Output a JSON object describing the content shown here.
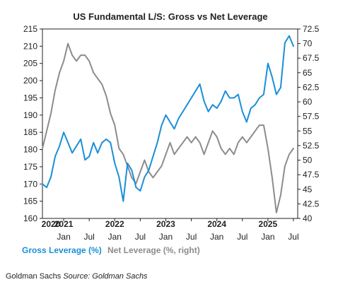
{
  "chart_data": {
    "type": "line",
    "title": "US Fundamental L/S: Gross vs Net Leverage",
    "left_axis": {
      "ylim": [
        160,
        215
      ],
      "ticks": [
        160,
        165,
        170,
        175,
        180,
        185,
        190,
        195,
        200,
        205,
        210,
        215
      ]
    },
    "right_axis": {
      "ylim": [
        40,
        72.5
      ],
      "ticks": [
        "40",
        "42.5",
        "45",
        "47.5",
        "50",
        "52.5",
        "55",
        "57.5",
        "60",
        "62.5",
        "65",
        "67.5",
        "70",
        "72.5"
      ]
    },
    "x_range": [
      "2020-08",
      "2025-08"
    ],
    "year_labels": [
      {
        "label": "2020",
        "date": "2020-10"
      },
      {
        "label": "2021",
        "date": "2021-01"
      },
      {
        "label": "2022",
        "date": "2022-01"
      },
      {
        "label": "2023",
        "date": "2023-01"
      },
      {
        "label": "2024",
        "date": "2024-01"
      },
      {
        "label": "2025",
        "date": "2025-01"
      }
    ],
    "month_labels": [
      {
        "label": "Jan",
        "date": "2021-01"
      },
      {
        "label": "Jul",
        "date": "2021-07"
      },
      {
        "label": "Jan",
        "date": "2022-01"
      },
      {
        "label": "Jul",
        "date": "2022-07"
      },
      {
        "label": "Jan",
        "date": "2023-01"
      },
      {
        "label": "Jul",
        "date": "2023-07"
      },
      {
        "label": "Jan",
        "date": "2024-01"
      },
      {
        "label": "Jul",
        "date": "2024-07"
      },
      {
        "label": "Jan",
        "date": "2025-01"
      },
      {
        "label": "Jul",
        "date": "2025-07"
      }
    ],
    "grid": false,
    "legend_position": "bottom-left",
    "series": [
      {
        "name": "Gross Leverage (%)",
        "axis": "left",
        "color": "#1a8fd8",
        "points": [
          [
            "2020-08",
            170
          ],
          [
            "2020-09",
            169
          ],
          [
            "2020-10",
            172
          ],
          [
            "2020-11",
            178
          ],
          [
            "2020-12",
            181
          ],
          [
            "2021-01",
            185
          ],
          [
            "2021-02",
            182
          ],
          [
            "2021-03",
            179
          ],
          [
            "2021-04",
            181
          ],
          [
            "2021-05",
            183
          ],
          [
            "2021-06",
            177
          ],
          [
            "2021-07",
            178
          ],
          [
            "2021-08",
            182
          ],
          [
            "2021-09",
            179
          ],
          [
            "2021-10",
            182
          ],
          [
            "2021-11",
            183
          ],
          [
            "2021-12",
            182
          ],
          [
            "2022-01",
            176
          ],
          [
            "2022-02",
            172
          ],
          [
            "2022-03",
            165
          ],
          [
            "2022-04",
            176
          ],
          [
            "2022-05",
            174
          ],
          [
            "2022-06",
            169
          ],
          [
            "2022-07",
            168
          ],
          [
            "2022-08",
            172
          ],
          [
            "2022-09",
            174
          ],
          [
            "2022-10",
            178
          ],
          [
            "2022-11",
            182
          ],
          [
            "2022-12",
            187
          ],
          [
            "2023-01",
            190
          ],
          [
            "2023-02",
            188
          ],
          [
            "2023-03",
            186
          ],
          [
            "2023-04",
            189
          ],
          [
            "2023-05",
            191
          ],
          [
            "2023-06",
            193
          ],
          [
            "2023-07",
            195
          ],
          [
            "2023-08",
            197
          ],
          [
            "2023-09",
            199
          ],
          [
            "2023-10",
            194
          ],
          [
            "2023-11",
            191
          ],
          [
            "2023-12",
            193
          ],
          [
            "2024-01",
            192
          ],
          [
            "2024-02",
            194
          ],
          [
            "2024-03",
            197
          ],
          [
            "2024-04",
            195
          ],
          [
            "2024-05",
            195
          ],
          [
            "2024-06",
            196
          ],
          [
            "2024-07",
            191
          ],
          [
            "2024-08",
            188
          ],
          [
            "2024-09",
            192
          ],
          [
            "2024-10",
            193
          ],
          [
            "2024-11",
            195
          ],
          [
            "2024-12",
            196
          ],
          [
            "2025-01",
            205
          ],
          [
            "2025-02",
            201
          ],
          [
            "2025-03",
            196
          ],
          [
            "2025-04",
            198
          ],
          [
            "2025-05",
            211
          ],
          [
            "2025-06",
            213
          ],
          [
            "2025-07",
            210
          ]
        ]
      },
      {
        "name": "Net Leverage (%, right)",
        "axis": "right",
        "color": "#8c8c8c",
        "points": [
          [
            "2020-08",
            52
          ],
          [
            "2020-09",
            55
          ],
          [
            "2020-10",
            58
          ],
          [
            "2020-11",
            62
          ],
          [
            "2020-12",
            65
          ],
          [
            "2021-01",
            67
          ],
          [
            "2021-02",
            70
          ],
          [
            "2021-03",
            68
          ],
          [
            "2021-04",
            67
          ],
          [
            "2021-05",
            68
          ],
          [
            "2021-06",
            68
          ],
          [
            "2021-07",
            67
          ],
          [
            "2021-08",
            65
          ],
          [
            "2021-09",
            64
          ],
          [
            "2021-10",
            63
          ],
          [
            "2021-11",
            61
          ],
          [
            "2021-12",
            58
          ],
          [
            "2022-01",
            56
          ],
          [
            "2022-02",
            52
          ],
          [
            "2022-03",
            51
          ],
          [
            "2022-04",
            49
          ],
          [
            "2022-05",
            47
          ],
          [
            "2022-06",
            46
          ],
          [
            "2022-07",
            48
          ],
          [
            "2022-08",
            50
          ],
          [
            "2022-09",
            48
          ],
          [
            "2022-10",
            47
          ],
          [
            "2022-11",
            48
          ],
          [
            "2022-12",
            49
          ],
          [
            "2023-01",
            51
          ],
          [
            "2023-02",
            53
          ],
          [
            "2023-03",
            51
          ],
          [
            "2023-04",
            52
          ],
          [
            "2023-05",
            53
          ],
          [
            "2023-06",
            54
          ],
          [
            "2023-07",
            53
          ],
          [
            "2023-08",
            54
          ],
          [
            "2023-09",
            53
          ],
          [
            "2023-10",
            51
          ],
          [
            "2023-11",
            53
          ],
          [
            "2023-12",
            55
          ],
          [
            "2024-01",
            54
          ],
          [
            "2024-02",
            52
          ],
          [
            "2024-03",
            51
          ],
          [
            "2024-04",
            52
          ],
          [
            "2024-05",
            51
          ],
          [
            "2024-06",
            53
          ],
          [
            "2024-07",
            54
          ],
          [
            "2024-08",
            53
          ],
          [
            "2024-09",
            54
          ],
          [
            "2024-10",
            55
          ],
          [
            "2024-11",
            56
          ],
          [
            "2024-12",
            56
          ],
          [
            "2025-01",
            52
          ],
          [
            "2025-02",
            47
          ],
          [
            "2025-03",
            41
          ],
          [
            "2025-04",
            44
          ],
          [
            "2025-05",
            49
          ],
          [
            "2025-06",
            51
          ],
          [
            "2025-07",
            52
          ]
        ]
      }
    ]
  },
  "footer": {
    "text": "Goldman Sachs ",
    "source_label": "Source: Goldman Sachs"
  }
}
